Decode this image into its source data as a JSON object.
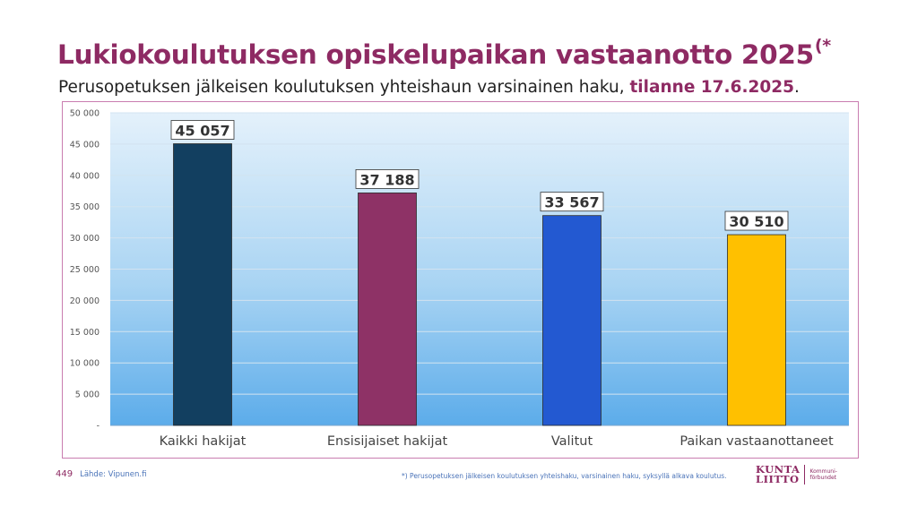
{
  "title": "Lukiokoulutuksen opiskelupaikan vastaanotto 2025",
  "title_marker": "(*",
  "subtitle_main": "Perusopetuksen jälkeisen koulutuksen yhteishaun varsinainen haku, ",
  "subtitle_highlight": "tilanne 17.6.2025",
  "subtitle_end": ".",
  "slide_number": "449",
  "source": "Lähde: Vipunen.fi",
  "footnote": "*) Perusopetuksen jälkeisen koulutuksen yhteishaku, varsinainen haku, syksyllä alkava koulutus.",
  "logo": {
    "line1": "KUNTA",
    "line2": "LIITTO",
    "sub1": "Kommuni-",
    "sub2": "förbundet"
  },
  "colors": {
    "accent": "#8e2a63",
    "footer_blue": "#4a73b8"
  },
  "chart_data": {
    "type": "bar",
    "title": "",
    "xlabel": "",
    "ylabel": "",
    "ylim": [
      0,
      50000
    ],
    "grid": true,
    "legend": "none",
    "categories": [
      "Kaikki hakijat",
      "Ensisijaiset hakijat",
      "Valitut",
      "Paikan vastaanottaneet"
    ],
    "values": [
      45057,
      37188,
      33567,
      30510
    ],
    "data_labels": [
      "45 057",
      "37 188",
      "33 567",
      "30 510"
    ],
    "y_ticks": [
      0,
      5000,
      10000,
      15000,
      20000,
      25000,
      30000,
      35000,
      40000,
      45000,
      50000
    ],
    "y_tick_labels": [
      "-",
      "5 000",
      "10 000",
      "15 000",
      "20 000",
      "25 000",
      "30 000",
      "35 000",
      "40 000",
      "45 000",
      "50 000"
    ],
    "bar_colors": [
      "#123f60",
      "#8e3266",
      "#2359d1",
      "#ffc000"
    ]
  }
}
